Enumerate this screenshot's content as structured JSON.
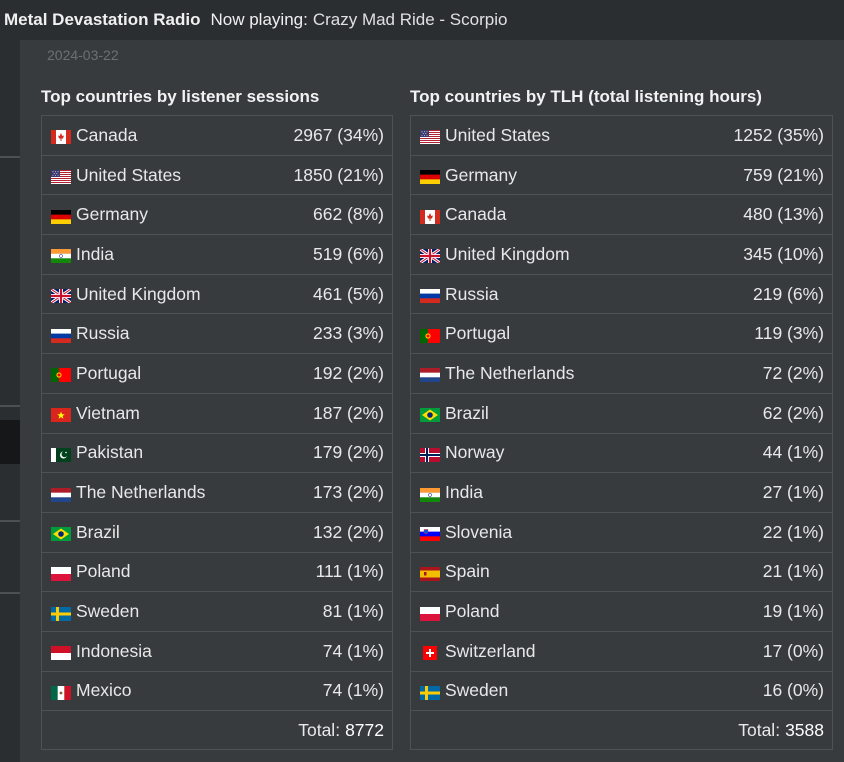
{
  "header": {
    "station": "Metal Devastation Radio",
    "now_playing_label": "Now playing:",
    "now_playing_track": "Crazy Mad Ride - Scorpio"
  },
  "date": "2024-03-22",
  "sessions": {
    "title": "Top countries by listener sessions",
    "rows": [
      {
        "country": "Canada",
        "value": "2967 (34%)",
        "flag": "canada-flag-icon"
      },
      {
        "country": "United States",
        "value": "1850 (21%)",
        "flag": "us-flag-icon"
      },
      {
        "country": "Germany",
        "value": "662 (8%)",
        "flag": "germany-flag-icon"
      },
      {
        "country": "India",
        "value": "519 (6%)",
        "flag": "india-flag-icon"
      },
      {
        "country": "United Kingdom",
        "value": "461 (5%)",
        "flag": "uk-flag-icon"
      },
      {
        "country": "Russia",
        "value": "233 (3%)",
        "flag": "russia-flag-icon"
      },
      {
        "country": "Portugal",
        "value": "192 (2%)",
        "flag": "portugal-flag-icon"
      },
      {
        "country": "Vietnam",
        "value": "187 (2%)",
        "flag": "vietnam-flag-icon"
      },
      {
        "country": "Pakistan",
        "value": "179 (2%)",
        "flag": "pakistan-flag-icon"
      },
      {
        "country": "The Netherlands",
        "value": "173 (2%)",
        "flag": "netherlands-flag-icon"
      },
      {
        "country": "Brazil",
        "value": "132 (2%)",
        "flag": "brazil-flag-icon"
      },
      {
        "country": "Poland",
        "value": "111 (1%)",
        "flag": "poland-flag-icon"
      },
      {
        "country": "Sweden",
        "value": "81 (1%)",
        "flag": "sweden-flag-icon"
      },
      {
        "country": "Indonesia",
        "value": "74 (1%)",
        "flag": "indonesia-flag-icon"
      },
      {
        "country": "Mexico",
        "value": "74 (1%)",
        "flag": "mexico-flag-icon"
      }
    ],
    "total_label": "Total:",
    "total_value": "8772"
  },
  "tlh": {
    "title": "Top countries by TLH (total listening hours)",
    "rows": [
      {
        "country": "United States",
        "value": "1252 (35%)",
        "flag": "us-flag-icon"
      },
      {
        "country": "Germany",
        "value": "759 (21%)",
        "flag": "germany-flag-icon"
      },
      {
        "country": "Canada",
        "value": "480 (13%)",
        "flag": "canada-flag-icon"
      },
      {
        "country": "United Kingdom",
        "value": "345 (10%)",
        "flag": "uk-flag-icon"
      },
      {
        "country": "Russia",
        "value": "219 (6%)",
        "flag": "russia-flag-icon"
      },
      {
        "country": "Portugal",
        "value": "119 (3%)",
        "flag": "portugal-flag-icon"
      },
      {
        "country": "The Netherlands",
        "value": "72 (2%)",
        "flag": "netherlands-flag-icon"
      },
      {
        "country": "Brazil",
        "value": "62 (2%)",
        "flag": "brazil-flag-icon"
      },
      {
        "country": "Norway",
        "value": "44 (1%)",
        "flag": "norway-flag-icon"
      },
      {
        "country": "India",
        "value": "27 (1%)",
        "flag": "india-flag-icon"
      },
      {
        "country": "Slovenia",
        "value": "22 (1%)",
        "flag": "slovenia-flag-icon"
      },
      {
        "country": "Spain",
        "value": "21 (1%)",
        "flag": "spain-flag-icon"
      },
      {
        "country": "Poland",
        "value": "19 (1%)",
        "flag": "poland-flag-icon"
      },
      {
        "country": "Switzerland",
        "value": "17 (0%)",
        "flag": "switzerland-flag-icon"
      },
      {
        "country": "Sweden",
        "value": "16 (0%)",
        "flag": "sweden-flag-icon"
      }
    ],
    "total_label": "Total:",
    "total_value": "3588"
  },
  "colors": {
    "background": "#2f3336",
    "panel": "#373b3e",
    "border": "#4c5256",
    "text": "#e8e8e8"
  }
}
